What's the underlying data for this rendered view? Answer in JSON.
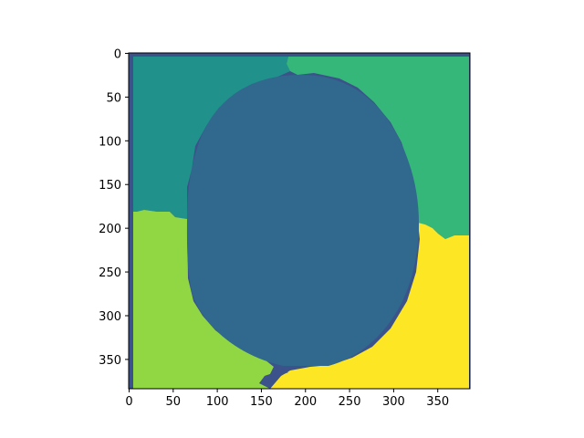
{
  "chart_data": {
    "type": "heatmap",
    "title": "",
    "xlabel": "",
    "ylabel": "",
    "image_size": [
      387,
      384
    ],
    "xlim": [
      -0.5,
      386.5
    ],
    "ylim": [
      383.5,
      -0.5
    ],
    "x_ticks": [
      0,
      50,
      100,
      150,
      200,
      250,
      300,
      350
    ],
    "y_ticks": [
      0,
      50,
      100,
      150,
      200,
      250,
      300,
      350
    ],
    "colormap": "viridis",
    "segment_labels": [
      {
        "label": 0,
        "color": "#3b528b",
        "region": "left/top border strip"
      },
      {
        "label": 1,
        "color": "#31688e",
        "region": "central oval"
      },
      {
        "label": 2,
        "color": "#21918c",
        "region": "top-left"
      },
      {
        "label": 3,
        "color": "#35b779",
        "region": "top-right"
      },
      {
        "label": 4,
        "color": "#90d743",
        "region": "bottom-left"
      },
      {
        "label": 5,
        "color": "#fde725",
        "region": "bottom-right"
      }
    ]
  }
}
